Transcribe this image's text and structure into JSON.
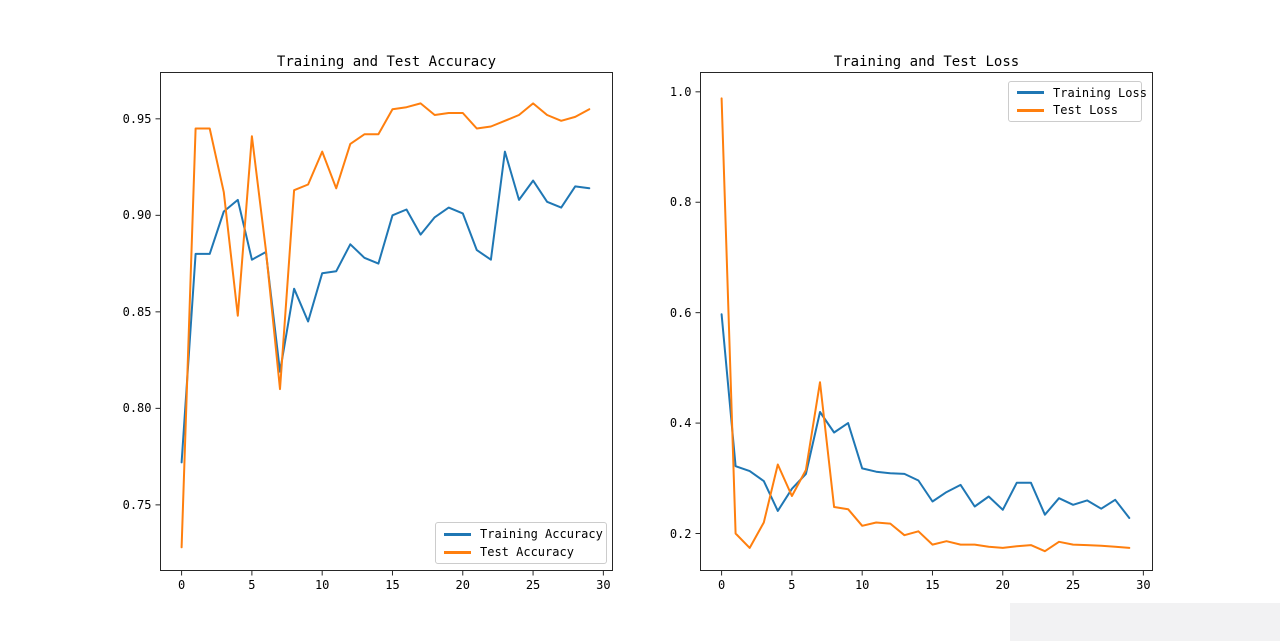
{
  "figure": {
    "background": "#ffffff",
    "spine_color": "#262626",
    "accent_blue": "#1f77b4",
    "accent_orange": "#ff7f0e"
  },
  "chart_data": [
    {
      "type": "line",
      "title": "Training and Test Accuracy",
      "xlabel": "",
      "ylabel": "",
      "grid": false,
      "legend_position": "lower right",
      "xlim": [
        -1.5,
        30.65
      ],
      "ylim": [
        0.716,
        0.974
      ],
      "x_ticks": [
        0,
        5,
        10,
        15,
        20,
        25,
        30
      ],
      "x_tick_labels": [
        "0",
        "5",
        "10",
        "15",
        "20",
        "25",
        "30"
      ],
      "y_ticks": [
        0.75,
        0.8,
        0.85,
        0.9,
        0.95
      ],
      "y_tick_labels": [
        "0.75",
        "0.80",
        "0.85",
        "0.90",
        "0.95"
      ],
      "x": [
        0,
        1,
        2,
        3,
        4,
        5,
        6,
        7,
        8,
        9,
        10,
        11,
        12,
        13,
        14,
        15,
        16,
        17,
        18,
        19,
        20,
        21,
        22,
        23,
        24,
        25,
        26,
        27,
        28,
        29
      ],
      "series": [
        {
          "name": "Training Accuracy",
          "color": "#1f77b4",
          "values": [
            0.772,
            0.88,
            0.88,
            0.902,
            0.908,
            0.877,
            0.881,
            0.819,
            0.862,
            0.845,
            0.87,
            0.871,
            0.885,
            0.878,
            0.875,
            0.9,
            0.903,
            0.89,
            0.899,
            0.904,
            0.901,
            0.882,
            0.877,
            0.933,
            0.908,
            0.918,
            0.907,
            0.904,
            0.915,
            0.914
          ]
        },
        {
          "name": "Test Accuracy",
          "color": "#ff7f0e",
          "values": [
            0.728,
            0.945,
            0.945,
            0.912,
            0.848,
            0.941,
            0.882,
            0.81,
            0.913,
            0.916,
            0.933,
            0.914,
            0.937,
            0.942,
            0.942,
            0.955,
            0.956,
            0.958,
            0.952,
            0.953,
            0.953,
            0.945,
            0.946,
            0.949,
            0.952,
            0.958,
            0.952,
            0.949,
            0.951,
            0.955
          ]
        }
      ]
    },
    {
      "type": "line",
      "title": "Training and Test Loss",
      "xlabel": "",
      "ylabel": "",
      "grid": false,
      "legend_position": "upper right",
      "xlim": [
        -1.5,
        30.65
      ],
      "ylim": [
        0.133,
        1.035
      ],
      "x_ticks": [
        0,
        5,
        10,
        15,
        20,
        25,
        30
      ],
      "x_tick_labels": [
        "0",
        "5",
        "10",
        "15",
        "20",
        "25",
        "30"
      ],
      "y_ticks": [
        0.2,
        0.4,
        0.6,
        0.8,
        1.0
      ],
      "y_tick_labels": [
        "0.2",
        "0.4",
        "0.6",
        "0.8",
        "1.0"
      ],
      "x": [
        0,
        1,
        2,
        3,
        4,
        5,
        6,
        7,
        8,
        9,
        10,
        11,
        12,
        13,
        14,
        15,
        16,
        17,
        18,
        19,
        20,
        21,
        22,
        23,
        24,
        25,
        26,
        27,
        28,
        29
      ],
      "series": [
        {
          "name": "Training Loss",
          "color": "#1f77b4",
          "values": [
            0.597,
            0.322,
            0.313,
            0.295,
            0.241,
            0.281,
            0.308,
            0.42,
            0.383,
            0.4,
            0.318,
            0.312,
            0.309,
            0.308,
            0.296,
            0.258,
            0.275,
            0.288,
            0.249,
            0.267,
            0.243,
            0.292,
            0.292,
            0.234,
            0.264,
            0.252,
            0.26,
            0.245,
            0.261,
            0.228
          ]
        },
        {
          "name": "Test Loss",
          "color": "#ff7f0e",
          "values": [
            0.988,
            0.2,
            0.174,
            0.22,
            0.325,
            0.268,
            0.315,
            0.474,
            0.248,
            0.244,
            0.214,
            0.22,
            0.218,
            0.197,
            0.204,
            0.18,
            0.186,
            0.18,
            0.18,
            0.176,
            0.174,
            0.177,
            0.179,
            0.168,
            0.185,
            0.18,
            0.179,
            0.178,
            0.176,
            0.174
          ]
        }
      ]
    }
  ]
}
